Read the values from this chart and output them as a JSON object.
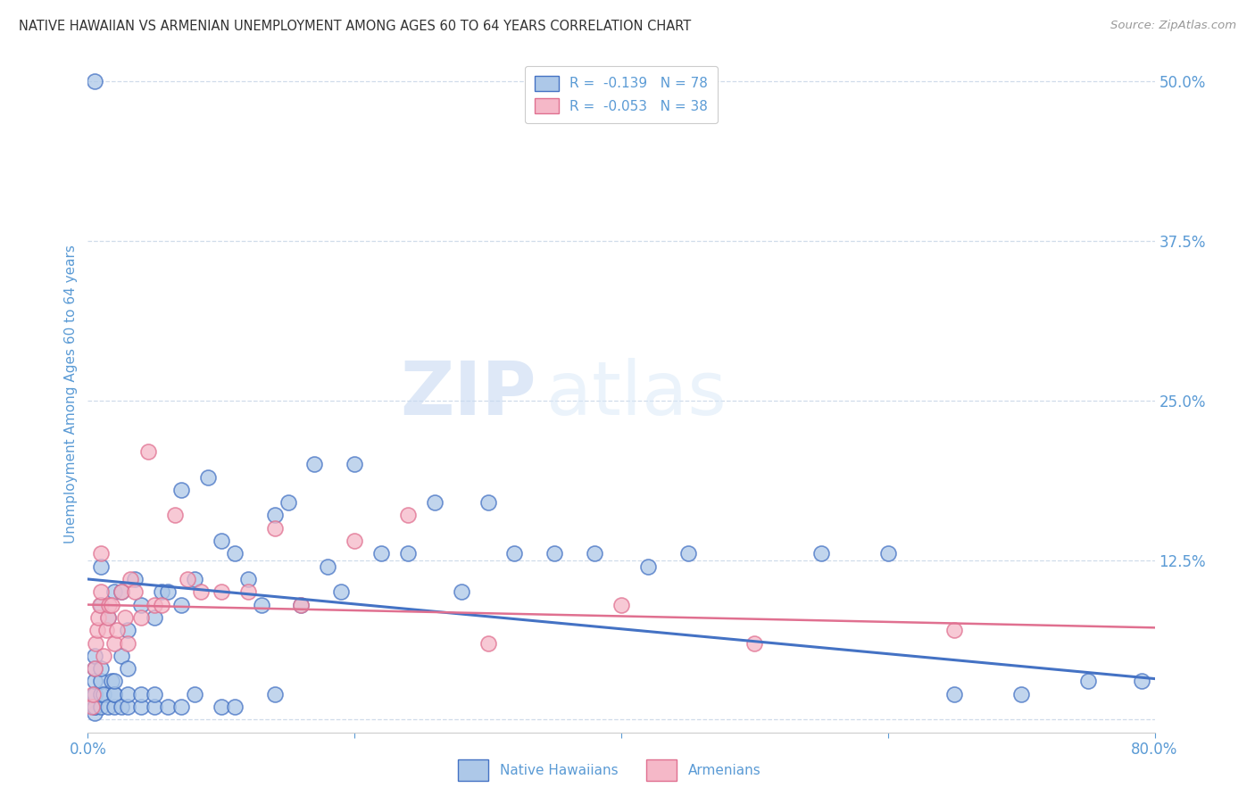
{
  "title": "NATIVE HAWAIIAN VS ARMENIAN UNEMPLOYMENT AMONG AGES 60 TO 64 YEARS CORRELATION CHART",
  "source": "Source: ZipAtlas.com",
  "ylabel": "Unemployment Among Ages 60 to 64 years",
  "xlim": [
    0.0,
    0.8
  ],
  "ylim": [
    -0.01,
    0.52
  ],
  "yticks": [
    0.0,
    0.125,
    0.25,
    0.375,
    0.5
  ],
  "ytick_labels": [
    "",
    "12.5%",
    "25.0%",
    "37.5%",
    "50.0%"
  ],
  "xticks": [
    0.0,
    0.2,
    0.4,
    0.6,
    0.8
  ],
  "xtick_labels": [
    "0.0%",
    "",
    "",
    "",
    "80.0%"
  ],
  "legend_r1": "R =  -0.139   N = 78",
  "legend_r2": "R =  -0.053   N = 38",
  "color_hawaiian": "#adc8e8",
  "color_armenian": "#f5b8c8",
  "color_line_hawaiian": "#4472c4",
  "color_line_armenian": "#e07090",
  "color_text_blue": "#5b9bd5",
  "color_grid": "#d0dcea",
  "background_color": "#ffffff",
  "watermark_zip": "ZIP",
  "watermark_atlas": "atlas",
  "hawaiian_x": [
    0.005,
    0.005,
    0.005,
    0.005,
    0.005,
    0.005,
    0.005,
    0.005,
    0.005,
    0.005,
    0.01,
    0.01,
    0.01,
    0.01,
    0.01,
    0.01,
    0.012,
    0.015,
    0.015,
    0.018,
    0.02,
    0.02,
    0.02,
    0.02,
    0.02,
    0.025,
    0.025,
    0.025,
    0.03,
    0.03,
    0.03,
    0.03,
    0.035,
    0.04,
    0.04,
    0.04,
    0.05,
    0.05,
    0.05,
    0.055,
    0.06,
    0.06,
    0.07,
    0.07,
    0.07,
    0.08,
    0.08,
    0.09,
    0.1,
    0.1,
    0.11,
    0.11,
    0.12,
    0.13,
    0.14,
    0.14,
    0.15,
    0.16,
    0.17,
    0.18,
    0.19,
    0.2,
    0.22,
    0.24,
    0.26,
    0.28,
    0.3,
    0.32,
    0.35,
    0.38,
    0.42,
    0.45,
    0.55,
    0.6,
    0.65,
    0.7,
    0.75,
    0.79
  ],
  "hawaiian_y": [
    0.005,
    0.01,
    0.01,
    0.02,
    0.02,
    0.02,
    0.03,
    0.04,
    0.05,
    0.5,
    0.01,
    0.02,
    0.03,
    0.04,
    0.09,
    0.12,
    0.02,
    0.01,
    0.08,
    0.03,
    0.01,
    0.02,
    0.02,
    0.03,
    0.1,
    0.01,
    0.05,
    0.1,
    0.01,
    0.02,
    0.04,
    0.07,
    0.11,
    0.01,
    0.02,
    0.09,
    0.01,
    0.02,
    0.08,
    0.1,
    0.01,
    0.1,
    0.01,
    0.09,
    0.18,
    0.02,
    0.11,
    0.19,
    0.01,
    0.14,
    0.01,
    0.13,
    0.11,
    0.09,
    0.02,
    0.16,
    0.17,
    0.09,
    0.2,
    0.12,
    0.1,
    0.2,
    0.13,
    0.13,
    0.17,
    0.1,
    0.17,
    0.13,
    0.13,
    0.13,
    0.12,
    0.13,
    0.13,
    0.13,
    0.02,
    0.02,
    0.03,
    0.03
  ],
  "armenian_x": [
    0.003,
    0.004,
    0.005,
    0.006,
    0.007,
    0.008,
    0.009,
    0.01,
    0.01,
    0.012,
    0.014,
    0.015,
    0.016,
    0.018,
    0.02,
    0.022,
    0.025,
    0.028,
    0.03,
    0.032,
    0.035,
    0.04,
    0.045,
    0.05,
    0.055,
    0.065,
    0.075,
    0.085,
    0.1,
    0.12,
    0.14,
    0.16,
    0.2,
    0.24,
    0.3,
    0.4,
    0.5,
    0.65
  ],
  "armenian_y": [
    0.01,
    0.02,
    0.04,
    0.06,
    0.07,
    0.08,
    0.09,
    0.1,
    0.13,
    0.05,
    0.07,
    0.08,
    0.09,
    0.09,
    0.06,
    0.07,
    0.1,
    0.08,
    0.06,
    0.11,
    0.1,
    0.08,
    0.21,
    0.09,
    0.09,
    0.16,
    0.11,
    0.1,
    0.1,
    0.1,
    0.15,
    0.09,
    0.14,
    0.16,
    0.06,
    0.09,
    0.06,
    0.07
  ],
  "hawaiian_trend_x": [
    0.0,
    0.8
  ],
  "hawaiian_trend_y": [
    0.11,
    0.032
  ],
  "armenian_trend_x": [
    0.0,
    0.8
  ],
  "armenian_trend_y": [
    0.09,
    0.072
  ]
}
